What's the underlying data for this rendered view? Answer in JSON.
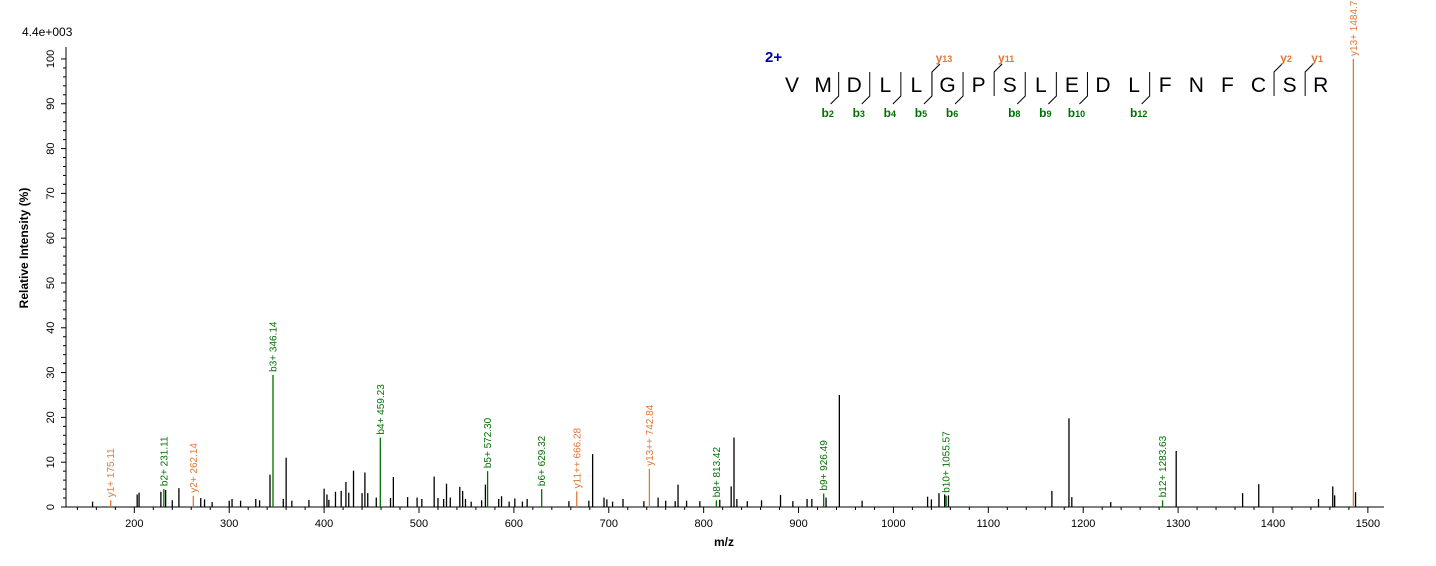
{
  "chart_data": {
    "type": "bar",
    "max_intensity_label": "4.4e+003",
    "xlabel": "m/z",
    "ylabel": "Relative   Intensity (%)",
    "xlim": [
      128,
      1517
    ],
    "ylim": [
      0,
      102
    ],
    "x_ticks": [
      200,
      300,
      400,
      500,
      600,
      700,
      800,
      900,
      1000,
      1100,
      1200,
      1300,
      1400,
      1500
    ],
    "y_ticks": [
      0,
      10,
      20,
      30,
      40,
      50,
      60,
      70,
      80,
      90,
      100
    ],
    "colors": {
      "b_ion": "#007000",
      "y_ion": "#E07838",
      "unlabeled": "#000000",
      "charge": "#0000B0"
    },
    "annotated_peaks": [
      {
        "mz": 175.11,
        "intensity": 1.5,
        "ion": "y",
        "label": "y1+ 175.11"
      },
      {
        "mz": 231.11,
        "intensity": 4,
        "ion": "b",
        "label": "b2+ 231.11"
      },
      {
        "mz": 262.14,
        "intensity": 2.5,
        "ion": "y",
        "label": "y2+ 262.14"
      },
      {
        "mz": 346.14,
        "intensity": 29.5,
        "ion": "b",
        "label": "b3+ 346.14"
      },
      {
        "mz": 459.23,
        "intensity": 15.5,
        "ion": "b",
        "label": "b4+ 459.23"
      },
      {
        "mz": 572.3,
        "intensity": 8,
        "ion": "b",
        "label": "b5+ 572.30"
      },
      {
        "mz": 629.32,
        "intensity": 4,
        "ion": "b",
        "label": "b6+ 629.32"
      },
      {
        "mz": 666.28,
        "intensity": 3.5,
        "ion": "y",
        "label": "y11++ 666.28"
      },
      {
        "mz": 742.84,
        "intensity": 8.5,
        "ion": "y",
        "label": "y13++ 742.84"
      },
      {
        "mz": 813.42,
        "intensity": 1.5,
        "ion": "b",
        "label": "b8+ 813.42"
      },
      {
        "mz": 926.49,
        "intensity": 3,
        "ion": "b",
        "label": "b9+ 926.49"
      },
      {
        "mz": 1055.57,
        "intensity": 2.5,
        "ion": "b",
        "label": "b10+ 1055.57"
      },
      {
        "mz": 1283.63,
        "intensity": 1.5,
        "ion": "b",
        "label": "b12+ 1283.63"
      },
      {
        "mz": 1484.71,
        "intensity": 100,
        "ion": "y",
        "label": "y13+ 1484.71"
      }
    ],
    "unlabeled_peaks": [
      [
        156,
        1.2
      ],
      [
        203,
        2.8
      ],
      [
        205,
        3.2
      ],
      [
        228,
        3.4
      ],
      [
        233,
        3.8
      ],
      [
        240,
        1.5
      ],
      [
        247,
        4.2
      ],
      [
        270,
        2
      ],
      [
        274,
        1.7
      ],
      [
        282,
        1.1
      ],
      [
        300,
        1.4
      ],
      [
        303,
        1.8
      ],
      [
        312,
        1.4
      ],
      [
        328,
        1.8
      ],
      [
        332,
        1.5
      ],
      [
        343,
        7.2
      ],
      [
        357,
        1.8
      ],
      [
        360,
        11
      ],
      [
        366,
        1.4
      ],
      [
        384,
        1.6
      ],
      [
        400,
        4.1
      ],
      [
        403,
        2.8
      ],
      [
        405,
        1.6
      ],
      [
        412,
        3.4
      ],
      [
        418,
        3.6
      ],
      [
        423,
        5.6
      ],
      [
        426,
        3.2
      ],
      [
        431,
        8.1
      ],
      [
        440,
        3.1
      ],
      [
        443,
        7.7
      ],
      [
        446,
        3.1
      ],
      [
        455,
        2.1
      ],
      [
        470,
        2
      ],
      [
        473,
        6.7
      ],
      [
        488,
        2.2
      ],
      [
        498,
        2.1
      ],
      [
        503,
        1.8
      ],
      [
        516,
        6.8
      ],
      [
        520,
        2
      ],
      [
        526,
        1.8
      ],
      [
        529,
        5.2
      ],
      [
        533,
        2.1
      ],
      [
        543,
        4.5
      ],
      [
        546,
        3.6
      ],
      [
        549,
        1.8
      ],
      [
        555,
        1.2
      ],
      [
        566,
        1.5
      ],
      [
        570,
        5
      ],
      [
        584,
        1.8
      ],
      [
        587,
        2.4
      ],
      [
        595,
        1.2
      ],
      [
        601,
        1.9
      ],
      [
        609,
        1.2
      ],
      [
        614,
        1.8
      ],
      [
        658,
        1.3
      ],
      [
        679,
        1.4
      ],
      [
        683,
        11.8
      ],
      [
        695,
        2.1
      ],
      [
        698,
        1.7
      ],
      [
        704,
        1.2
      ],
      [
        715,
        1.8
      ],
      [
        737,
        1.3
      ],
      [
        752,
        2.1
      ],
      [
        760,
        1.4
      ],
      [
        770,
        1.3
      ],
      [
        773,
        5
      ],
      [
        782,
        1.4
      ],
      [
        796,
        1.3
      ],
      [
        817,
        1.6
      ],
      [
        829,
        4.6
      ],
      [
        832,
        15.5
      ],
      [
        835,
        1.8
      ],
      [
        846,
        1.3
      ],
      [
        861,
        1.5
      ],
      [
        881,
        2.7
      ],
      [
        894,
        1.3
      ],
      [
        909,
        1.8
      ],
      [
        914,
        1.8
      ],
      [
        929,
        2.1
      ],
      [
        943,
        25
      ],
      [
        967,
        1.4
      ],
      [
        1036,
        2.3
      ],
      [
        1040,
        1.7
      ],
      [
        1048,
        3.1
      ],
      [
        1054,
        2.8
      ],
      [
        1058,
        2.6
      ],
      [
        1167,
        3.6
      ],
      [
        1185,
        19.8
      ],
      [
        1188,
        2.2
      ],
      [
        1229,
        1.1
      ],
      [
        1298,
        12.5
      ],
      [
        1368,
        3.1
      ],
      [
        1385,
        5.1
      ],
      [
        1448,
        1.8
      ],
      [
        1463,
        4.6
      ],
      [
        1465,
        2.6
      ],
      [
        1487,
        3.3
      ]
    ]
  },
  "sequence": {
    "charge_label": "2+",
    "residues": [
      "V",
      "M",
      "D",
      "L",
      "L",
      "G",
      "P",
      "S",
      "L",
      "E",
      "D",
      "L",
      "F",
      "N",
      "F",
      "C",
      "S",
      "R"
    ],
    "b_ions": [
      {
        "after_residue": 2,
        "letter": "b",
        "sub": "2"
      },
      {
        "after_residue": 3,
        "letter": "b",
        "sub": "3"
      },
      {
        "after_residue": 4,
        "letter": "b",
        "sub": "4"
      },
      {
        "after_residue": 5,
        "letter": "b",
        "sub": "5"
      },
      {
        "after_residue": 6,
        "letter": "b",
        "sub": "6"
      },
      {
        "after_residue": 8,
        "letter": "b",
        "sub": "8"
      },
      {
        "after_residue": 9,
        "letter": "b",
        "sub": "9"
      },
      {
        "after_residue": 10,
        "letter": "b",
        "sub": "10"
      },
      {
        "after_residue": 12,
        "letter": "b",
        "sub": "12"
      }
    ],
    "y_ions": [
      {
        "after_residue": 5,
        "letter": "y",
        "sub": "13"
      },
      {
        "after_residue": 7,
        "letter": "y",
        "sub": "11"
      },
      {
        "after_residue": 16,
        "letter": "y",
        "sub": "2"
      },
      {
        "after_residue": 17,
        "letter": "y",
        "sub": "1"
      }
    ]
  }
}
